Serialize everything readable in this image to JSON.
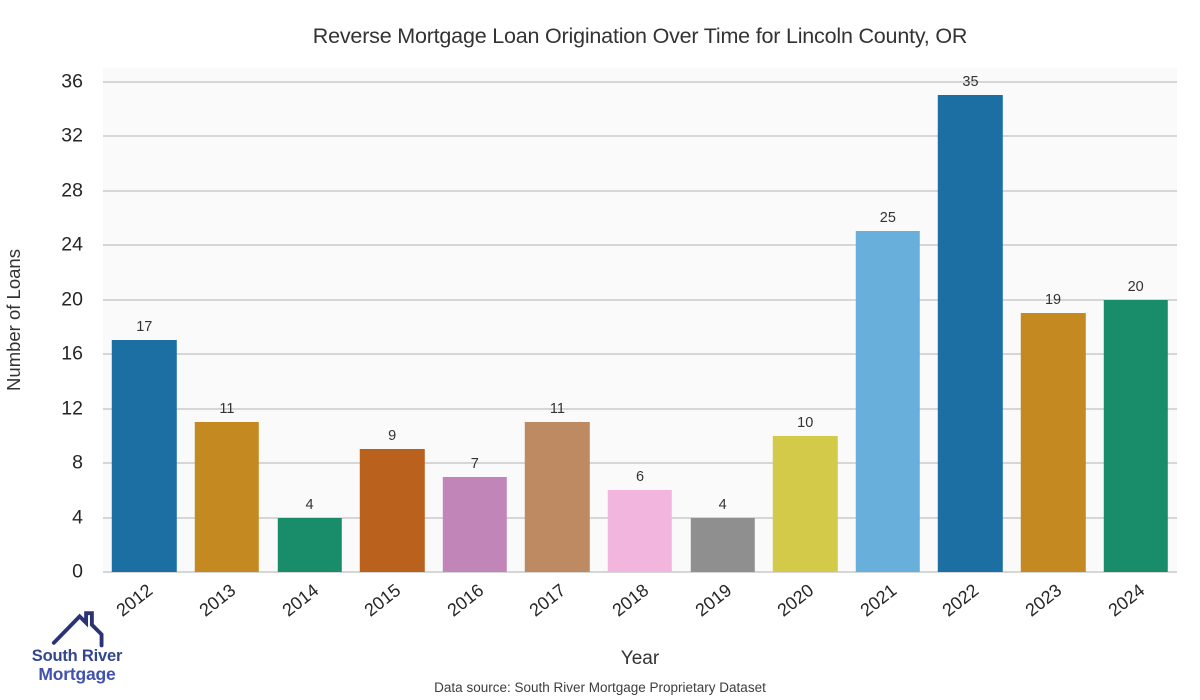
{
  "title": "Reverse Mortgage Loan Origination Over Time for Lincoln County, OR",
  "chart_data": {
    "type": "bar",
    "title": "Reverse Mortgage Loan Origination Over Time for Lincoln County, OR",
    "categories": [
      "2012",
      "2013",
      "2014",
      "2015",
      "2016",
      "2017",
      "2018",
      "2019",
      "2020",
      "2021",
      "2022",
      "2023",
      "2024"
    ],
    "values": [
      17,
      11,
      4,
      9,
      7,
      11,
      6,
      4,
      10,
      25,
      35,
      19,
      20
    ],
    "bar_colors": [
      "#1b6fa3",
      "#c48a21",
      "#198c6a",
      "#bb611e",
      "#c285b8",
      "#bd8a62",
      "#f2b5dd",
      "#8f8f8f",
      "#d3ca49",
      "#69afdb",
      "#1b6fa3",
      "#c48a21",
      "#198c6a"
    ],
    "xlabel": "Year",
    "ylabel": "Number of Loans",
    "ylim": [
      0,
      37
    ],
    "yticks": [
      0,
      4,
      8,
      12,
      16,
      20,
      24,
      28,
      32,
      36
    ],
    "grid": true,
    "legend": "none",
    "value_labels": true
  },
  "footer": {
    "source": "Data source: South River Mortgage Proprietary Dataset"
  },
  "logo": {
    "icon": "house-roof-icon",
    "line1": "South River",
    "line2": "Mortgage"
  },
  "colors": {
    "plot_background": "#fafafa",
    "figure_background": "#ffffff",
    "gridline": "#d6d6d6",
    "text": "#333333",
    "logo_roof": "#2b3377",
    "logo_text_dark": "#33478f",
    "logo_text_light": "#4152ae"
  }
}
